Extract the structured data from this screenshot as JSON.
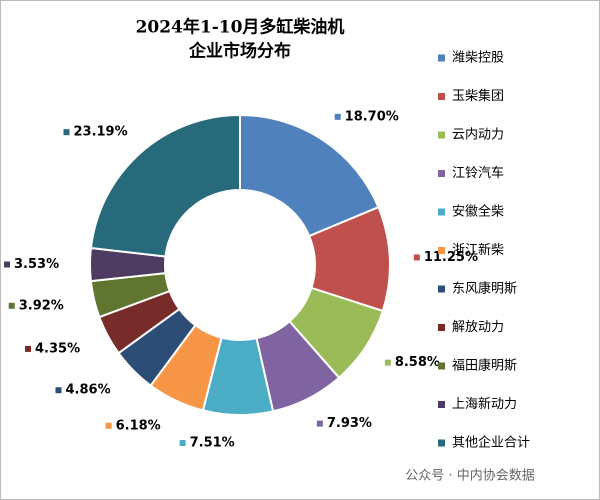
{
  "chart_data": {
    "type": "donut",
    "title": "2024年1-10月多缸柴油机",
    "subtitle": "企业市场分布",
    "categories": [
      "潍柴控股",
      "玉柴集团",
      "云内动力",
      "江铃汽车",
      "安徽全柴",
      "浙江新柴",
      "东风康明斯",
      "解放动力",
      "福田康明斯",
      "上海新动力",
      "其他企业合计"
    ],
    "values": [
      18.7,
      11.25,
      8.58,
      7.93,
      7.51,
      6.18,
      4.86,
      4.35,
      3.92,
      3.53,
      23.19
    ],
    "value_labels": [
      "18.70%",
      "11.25%",
      "8.58%",
      "7.93%",
      "7.51%",
      "6.18%",
      "4.86%",
      "4.35%",
      "3.92%",
      "3.53%",
      "23.19%"
    ],
    "colors": [
      "#4f81bd",
      "#c0504d",
      "#9bbb59",
      "#8064a2",
      "#4bacc6",
      "#f79646",
      "#2c4d75",
      "#772c2a",
      "#5f7530",
      "#4d3b62",
      "#276a7c"
    ],
    "legend": "right",
    "watermark": "公众号 · 中内协会数据"
  }
}
